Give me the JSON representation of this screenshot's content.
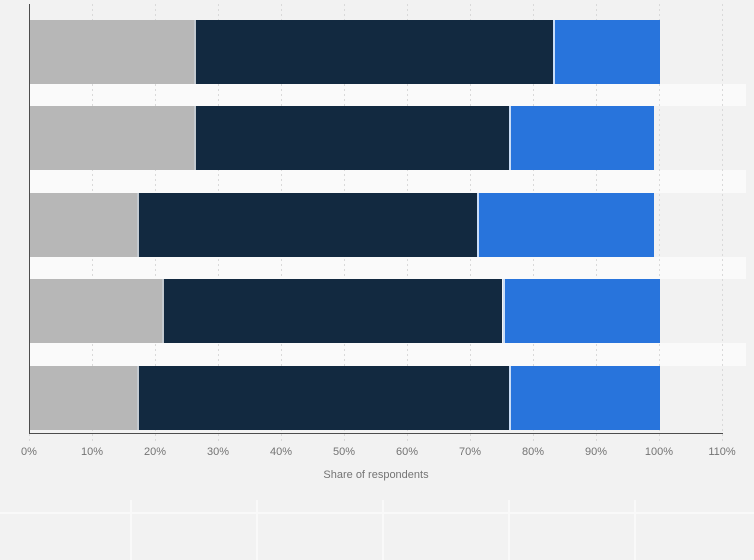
{
  "chart_data": {
    "type": "bar",
    "orientation": "horizontal",
    "stacked": true,
    "title": "",
    "xlabel": "Share of respondents",
    "ylabel": "",
    "xlim": [
      0,
      110
    ],
    "x_tick_labels": [
      "0%",
      "10%",
      "20%",
      "30%",
      "40%",
      "50%",
      "60%",
      "70%",
      "80%",
      "90%",
      "100%",
      "110%"
    ],
    "grid": "dashed-vertical",
    "legend_position": "none",
    "categories": [
      "",
      "",
      "",
      "",
      ""
    ],
    "series": [
      {
        "name": "gray-segment",
        "color": "#b7b7b7",
        "values": [
          26,
          26,
          17,
          21,
          17
        ]
      },
      {
        "name": "dark-navy-segment",
        "color": "#122940",
        "values": [
          57,
          50,
          54,
          54,
          59
        ]
      },
      {
        "name": "blue-segment",
        "color": "#2874dc",
        "values": [
          17,
          23,
          28,
          25,
          24
        ]
      }
    ]
  },
  "colors": {
    "background": "#f2f2f2",
    "row_stripe": "#fafafa",
    "gridline": "#d9d9d9",
    "axis": "#4d4d4d",
    "tick_text": "#747474"
  }
}
